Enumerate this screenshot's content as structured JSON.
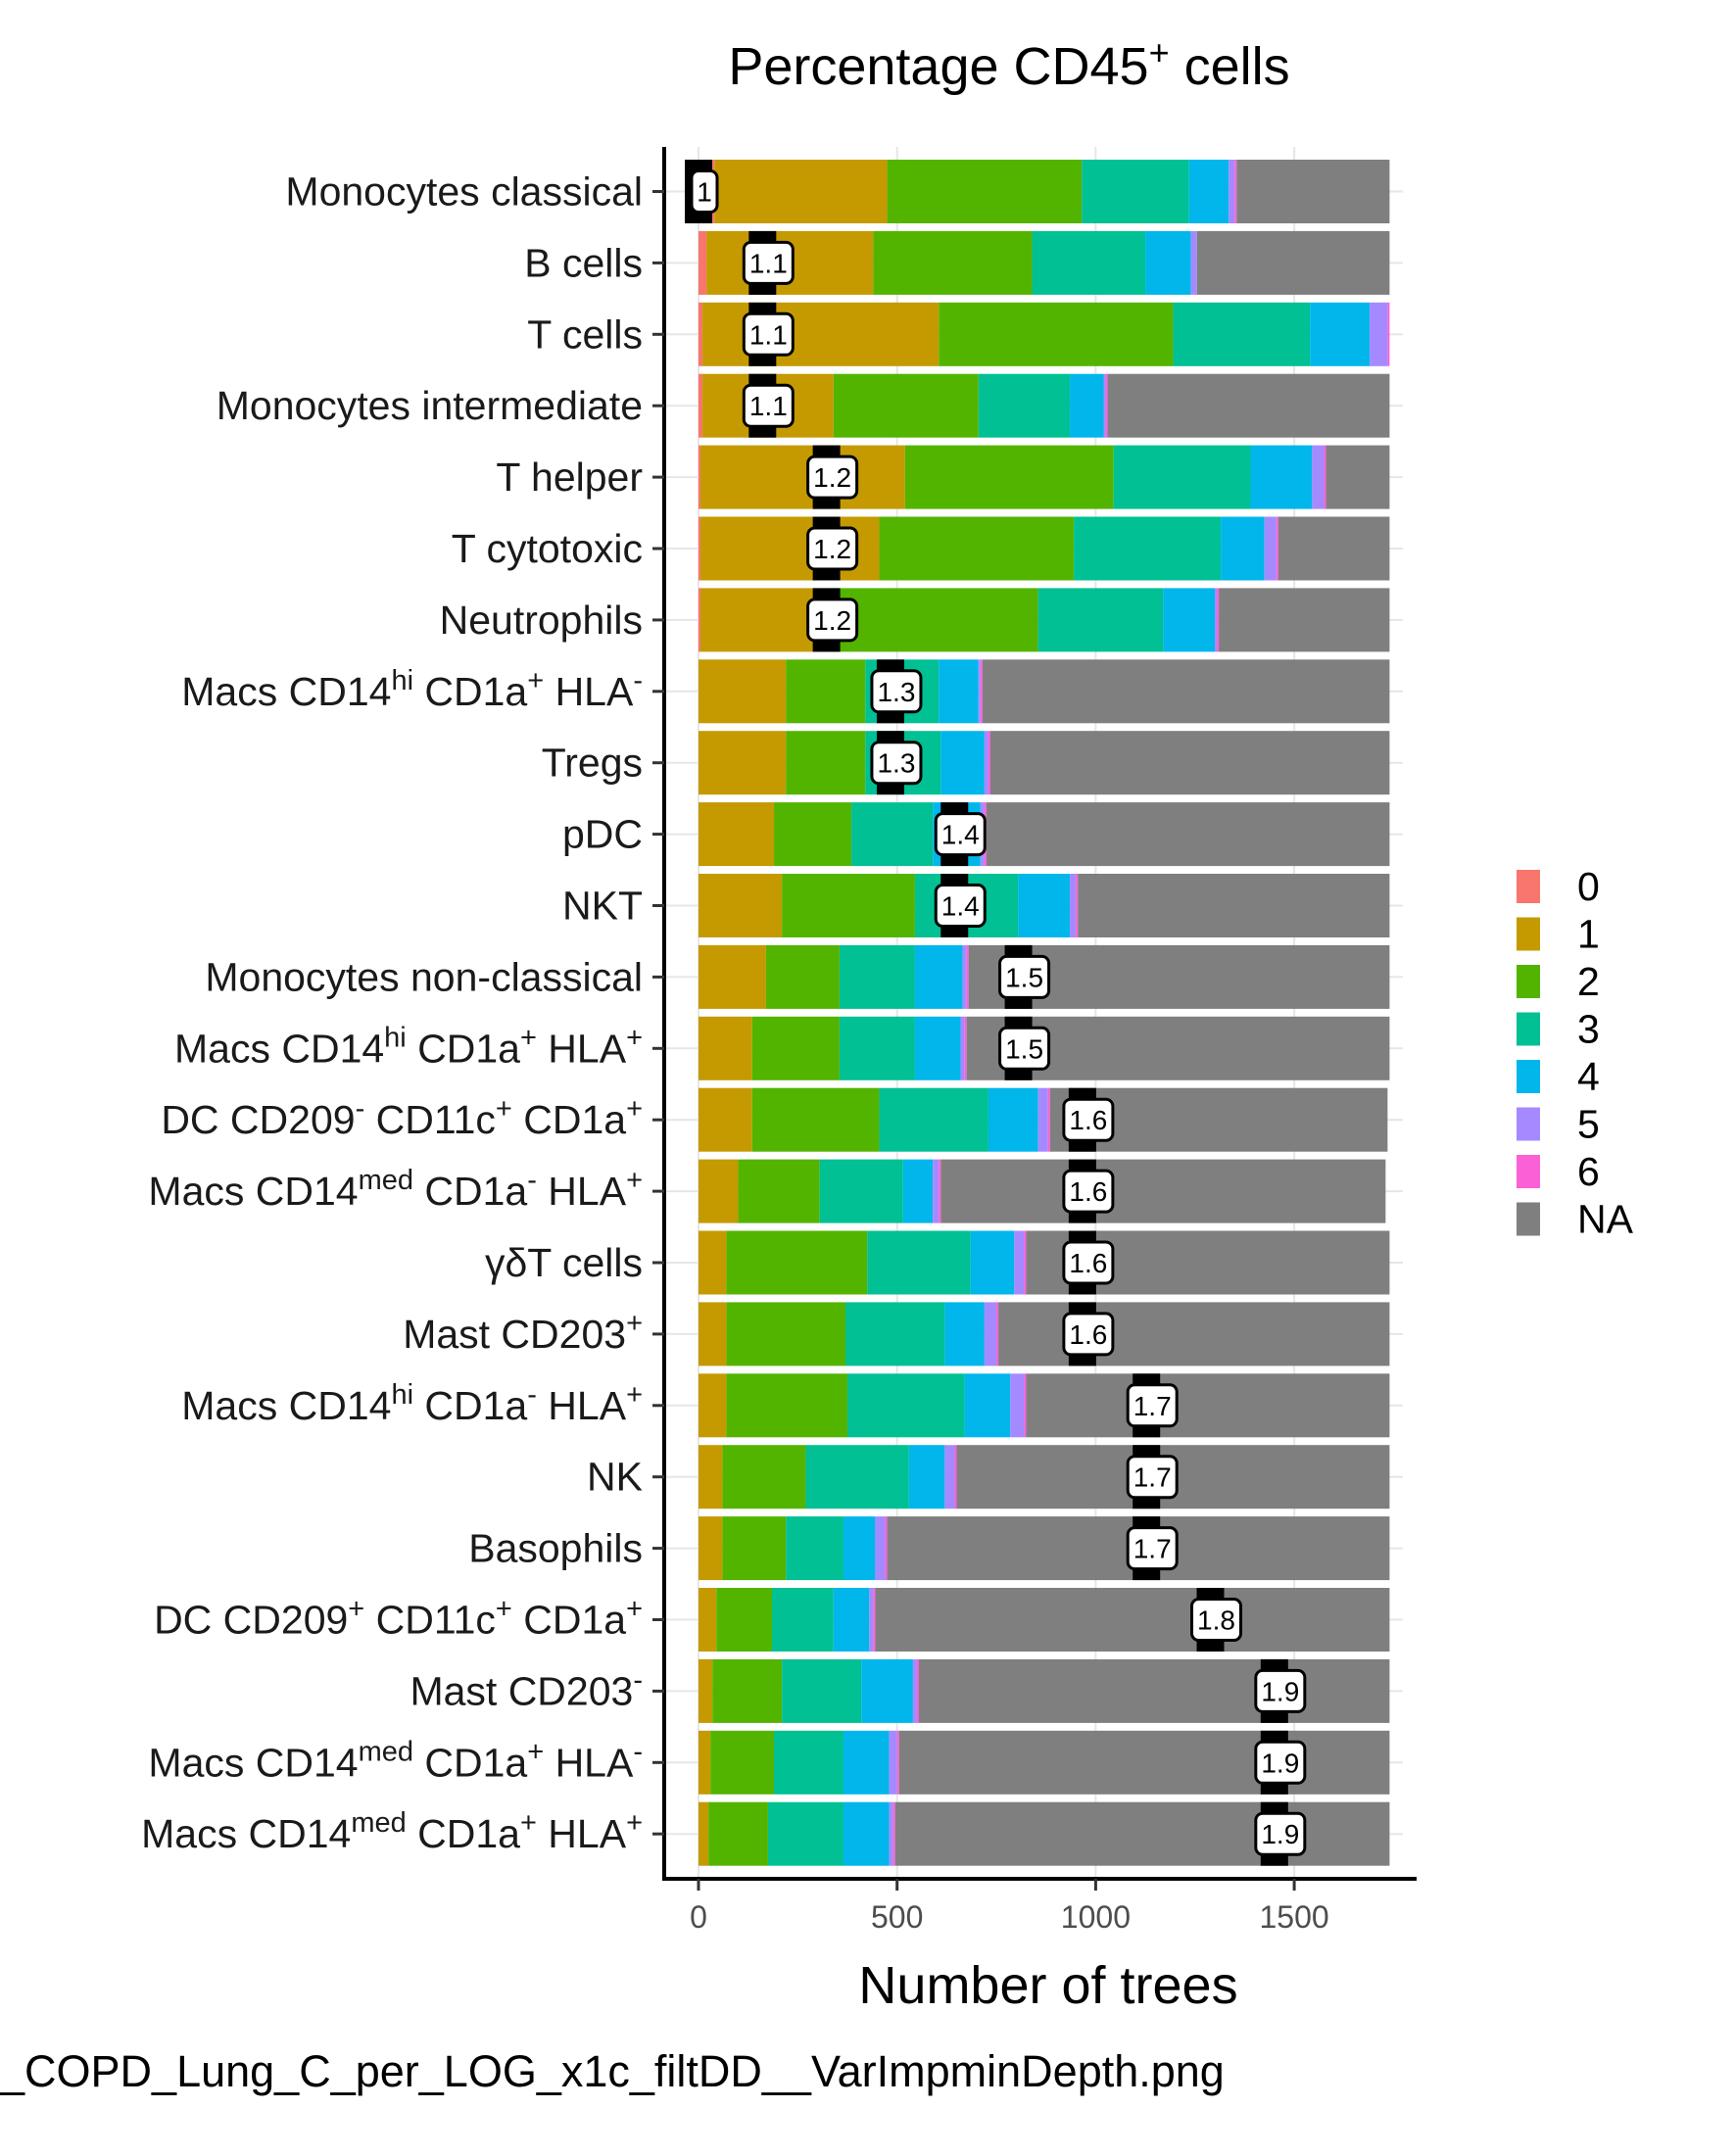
{
  "chart_data": {
    "type": "bar",
    "orientation": "horizontal",
    "stacked": true,
    "title": {
      "main": "Percentage CD45",
      "sup": "+",
      "rest": " cells"
    },
    "xlabel": "Number of trees",
    "caption": "_COPD_Lung_C_per_LOG_x1c_filtDD__VarImpminDepth.png",
    "xlim": [
      0,
      1740
    ],
    "xticks": [
      0,
      500,
      1000,
      1500
    ],
    "xtick_labels": [
      "0",
      "500",
      "1000",
      "1500"
    ],
    "grid": "vertical major lines",
    "legend": {
      "position": "right",
      "title": "",
      "entries": [
        "0",
        "1",
        "2",
        "3",
        "4",
        "5",
        "6",
        "NA"
      ]
    },
    "colors": [
      "#F8766D",
      "#C49A00",
      "#53B400",
      "#00C094",
      "#00B6EB",
      "#A58AFF",
      "#FB61D7",
      "#7F7F7F"
    ],
    "marker_color": "#000000",
    "categories": [
      {
        "name": [
          [
            "Monocytes classical",
            ""
          ]
        ],
        "mean": 1,
        "mean_label": "1",
        "segments": [
          40,
          435,
          490,
          270,
          100,
          15,
          5,
          385
        ]
      },
      {
        "name": [
          [
            "B cells",
            ""
          ]
        ],
        "mean": 1.1,
        "mean_label": "1.1",
        "segments": [
          20,
          420,
          400,
          285,
          115,
          15,
          0,
          485
        ]
      },
      {
        "name": [
          [
            "T cells",
            ""
          ]
        ],
        "mean": 1.1,
        "mean_label": "1.1",
        "segments": [
          10,
          595,
          590,
          345,
          150,
          45,
          5,
          0
        ]
      },
      {
        "name": [
          [
            "Monocytes intermediate",
            ""
          ]
        ],
        "mean": 1.1,
        "mean_label": "1.1",
        "segments": [
          10,
          330,
          365,
          230,
          85,
          5,
          5,
          710
        ]
      },
      {
        "name": [
          [
            "T helper",
            ""
          ]
        ],
        "mean": 1.2,
        "mean_label": "1.2",
        "segments": [
          5,
          515,
          525,
          345,
          155,
          30,
          5,
          160
        ]
      },
      {
        "name": [
          [
            "T cytotoxic",
            ""
          ]
        ],
        "mean": 1.2,
        "mean_label": "1.2",
        "segments": [
          5,
          450,
          490,
          370,
          110,
          30,
          5,
          280
        ]
      },
      {
        "name": [
          [
            "Neutrophils",
            ""
          ]
        ],
        "mean": 1.2,
        "mean_label": "1.2",
        "segments": [
          5,
          325,
          525,
          315,
          130,
          5,
          5,
          430
        ]
      },
      {
        "name": [
          [
            "Macs CD14",
            ""
          ],
          [
            "hi",
            "sup"
          ],
          [
            " CD1a",
            ""
          ],
          [
            "+",
            "sup"
          ],
          [
            " HLA",
            ""
          ],
          [
            "-",
            "sup"
          ]
        ],
        "mean": 1.3,
        "mean_label": "1.3",
        "segments": [
          0,
          220,
          200,
          185,
          100,
          5,
          5,
          1025
        ]
      },
      {
        "name": [
          [
            "Tregs",
            ""
          ]
        ],
        "mean": 1.3,
        "mean_label": "1.3",
        "segments": [
          0,
          220,
          200,
          190,
          110,
          10,
          5,
          1005
        ]
      },
      {
        "name": [
          [
            "pDC",
            ""
          ]
        ],
        "mean": 1.4,
        "mean_label": "1.4",
        "segments": [
          0,
          190,
          195,
          205,
          120,
          10,
          5,
          1015
        ]
      },
      {
        "name": [
          [
            "NKT",
            ""
          ]
        ],
        "mean": 1.4,
        "mean_label": "1.4",
        "segments": [
          0,
          210,
          335,
          260,
          130,
          15,
          5,
          785
        ]
      },
      {
        "name": [
          [
            "Monocytes non-classical",
            ""
          ]
        ],
        "mean": 1.5,
        "mean_label": "1.5",
        "segments": [
          0,
          170,
          185,
          190,
          120,
          10,
          5,
          1060
        ]
      },
      {
        "name": [
          [
            "Macs CD14",
            ""
          ],
          [
            "hi",
            "sup"
          ],
          [
            " CD1a",
            ""
          ],
          [
            "+",
            "sup"
          ],
          [
            " HLA",
            ""
          ],
          [
            "+",
            "sup"
          ]
        ],
        "mean": 1.5,
        "mean_label": "1.5",
        "segments": [
          0,
          135,
          220,
          190,
          115,
          10,
          5,
          1065
        ]
      },
      {
        "name": [
          [
            "DC CD209",
            ""
          ],
          [
            "-",
            "sup"
          ],
          [
            " CD11c",
            ""
          ],
          [
            "+",
            "sup"
          ],
          [
            " CD1a",
            ""
          ],
          [
            "+",
            "sup"
          ]
        ],
        "mean": 1.6,
        "mean_label": "1.6",
        "segments": [
          0,
          135,
          320,
          275,
          125,
          25,
          5,
          850
        ]
      },
      {
        "name": [
          [
            "Macs CD14",
            ""
          ],
          [
            "med",
            "sup"
          ],
          [
            " CD1a",
            ""
          ],
          [
            "-",
            "sup"
          ],
          [
            " HLA",
            ""
          ],
          [
            "+",
            "sup"
          ]
        ],
        "mean": 1.6,
        "mean_label": "1.6",
        "segments": [
          0,
          100,
          205,
          210,
          75,
          15,
          5,
          1120
        ]
      },
      {
        "name": [
          [
            "γδT cells",
            ""
          ]
        ],
        "mean": 1.6,
        "mean_label": "1.6",
        "segments": [
          0,
          70,
          355,
          260,
          110,
          25,
          5,
          915
        ]
      },
      {
        "name": [
          [
            "Mast CD203",
            ""
          ],
          [
            "+",
            "sup"
          ]
        ],
        "mean": 1.6,
        "mean_label": "1.6",
        "segments": [
          0,
          70,
          300,
          250,
          100,
          30,
          5,
          985
        ]
      },
      {
        "name": [
          [
            "Macs CD14",
            ""
          ],
          [
            "hi",
            "sup"
          ],
          [
            " CD1a",
            ""
          ],
          [
            "-",
            "sup"
          ],
          [
            " HLA",
            ""
          ],
          [
            "+",
            "sup"
          ]
        ],
        "mean": 1.7,
        "mean_label": "1.7",
        "segments": [
          0,
          70,
          305,
          295,
          115,
          35,
          5,
          915
        ]
      },
      {
        "name": [
          [
            "NK",
            ""
          ]
        ],
        "mean": 1.7,
        "mean_label": "1.7",
        "segments": [
          0,
          60,
          210,
          260,
          90,
          25,
          5,
          1090
        ]
      },
      {
        "name": [
          [
            "Basophils",
            ""
          ]
        ],
        "mean": 1.7,
        "mean_label": "1.7",
        "segments": [
          0,
          60,
          160,
          145,
          80,
          25,
          5,
          1265
        ]
      },
      {
        "name": [
          [
            "DC CD209",
            ""
          ],
          [
            "+",
            "sup"
          ],
          [
            " CD11c",
            ""
          ],
          [
            "+",
            "sup"
          ],
          [
            " CD1a",
            ""
          ],
          [
            "+",
            "sup"
          ]
        ],
        "mean": 1.8,
        "mean_label": "1.8",
        "segments": [
          0,
          45,
          140,
          155,
          90,
          10,
          5,
          1295
        ]
      },
      {
        "name": [
          [
            "Mast CD203",
            ""
          ],
          [
            "-",
            "sup"
          ]
        ],
        "mean": 1.9,
        "mean_label": "1.9",
        "segments": [
          0,
          35,
          175,
          200,
          130,
          10,
          5,
          1185
        ]
      },
      {
        "name": [
          [
            "Macs CD14",
            ""
          ],
          [
            "med",
            "sup"
          ],
          [
            " CD1a",
            ""
          ],
          [
            "+",
            "sup"
          ],
          [
            " HLA",
            ""
          ],
          [
            "-",
            "sup"
          ]
        ],
        "mean": 1.9,
        "mean_label": "1.9",
        "segments": [
          0,
          30,
          160,
          175,
          115,
          20,
          5,
          1235
        ]
      },
      {
        "name": [
          [
            "Macs CD14",
            ""
          ],
          [
            "med",
            "sup"
          ],
          [
            " CD1a",
            ""
          ],
          [
            "+",
            "sup"
          ],
          [
            " HLA",
            ""
          ],
          [
            "+",
            "sup"
          ]
        ],
        "mean": 1.9,
        "mean_label": "1.9",
        "segments": [
          0,
          25,
          150,
          190,
          115,
          10,
          5,
          1245
        ]
      }
    ]
  }
}
